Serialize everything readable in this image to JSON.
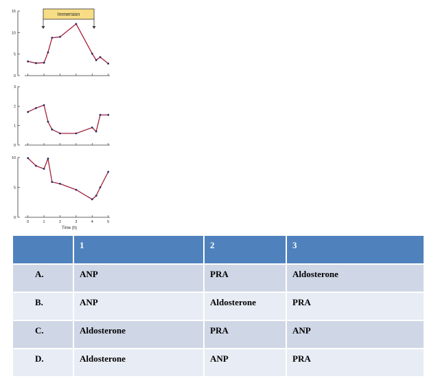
{
  "chart_data": {
    "type": "line",
    "x": [
      0,
      0.5,
      1,
      1.25,
      1.5,
      2,
      3,
      4,
      4.25,
      4.5,
      5
    ],
    "annotation": "Immersion",
    "immersion_range": [
      1,
      4
    ],
    "xlabel": "Time (h)",
    "xticks": [
      "0",
      "1",
      "2",
      "3",
      "4",
      "5"
    ],
    "xlim": [
      -0.2,
      5.1
    ],
    "series_color": "#a0203a",
    "marker_color": "#2a2a66",
    "panels": [
      {
        "ylim": [
          0,
          15
        ],
        "yticks": [
          "0",
          "5",
          "10",
          "15"
        ],
        "values": [
          3.3,
          2.9,
          3.0,
          5.4,
          8.8,
          9.0,
          12.0,
          5.1,
          3.6,
          4.3,
          2.8
        ]
      },
      {
        "ylim": [
          0,
          3
        ],
        "yticks": [
          "0",
          "1",
          "2",
          "3"
        ],
        "points": [
          [
            0,
            1.7
          ],
          [
            0.5,
            1.9
          ],
          [
            1,
            2.05
          ],
          [
            1.25,
            1.2
          ],
          [
            1.5,
            0.8
          ],
          [
            2,
            0.6
          ],
          [
            3,
            0.6
          ],
          [
            4,
            0.9
          ],
          [
            4.25,
            0.7
          ],
          [
            4.5,
            1.55
          ],
          [
            5,
            1.55
          ]
        ]
      },
      {
        "ylim": [
          0,
          10
        ],
        "yticks": [
          "0",
          "5",
          "10"
        ],
        "points": [
          [
            0,
            9.9
          ],
          [
            0.5,
            8.6
          ],
          [
            1,
            8.1
          ],
          [
            1.25,
            9.8
          ],
          [
            1.5,
            5.9
          ],
          [
            2,
            5.6
          ],
          [
            3,
            4.6
          ],
          [
            4,
            3.0
          ],
          [
            4.25,
            3.6
          ],
          [
            4.5,
            5.0
          ],
          [
            5,
            7.6
          ]
        ]
      }
    ]
  },
  "table": {
    "headers": [
      "",
      "1",
      "2",
      "3"
    ],
    "rows": [
      {
        "label": "A.",
        "c1": "ANP",
        "c2": "PRA",
        "c3": "Aldosterone"
      },
      {
        "label": "B.",
        "c1": "ANP",
        "c2": "Aldosterone",
        "c3": "PRA"
      },
      {
        "label": "C.",
        "c1": "Aldosterone",
        "c2": "PRA",
        "c3": "ANP"
      },
      {
        "label": "D.",
        "c1": "Aldosterone",
        "c2": "ANP",
        "c3": "PRA"
      }
    ]
  }
}
